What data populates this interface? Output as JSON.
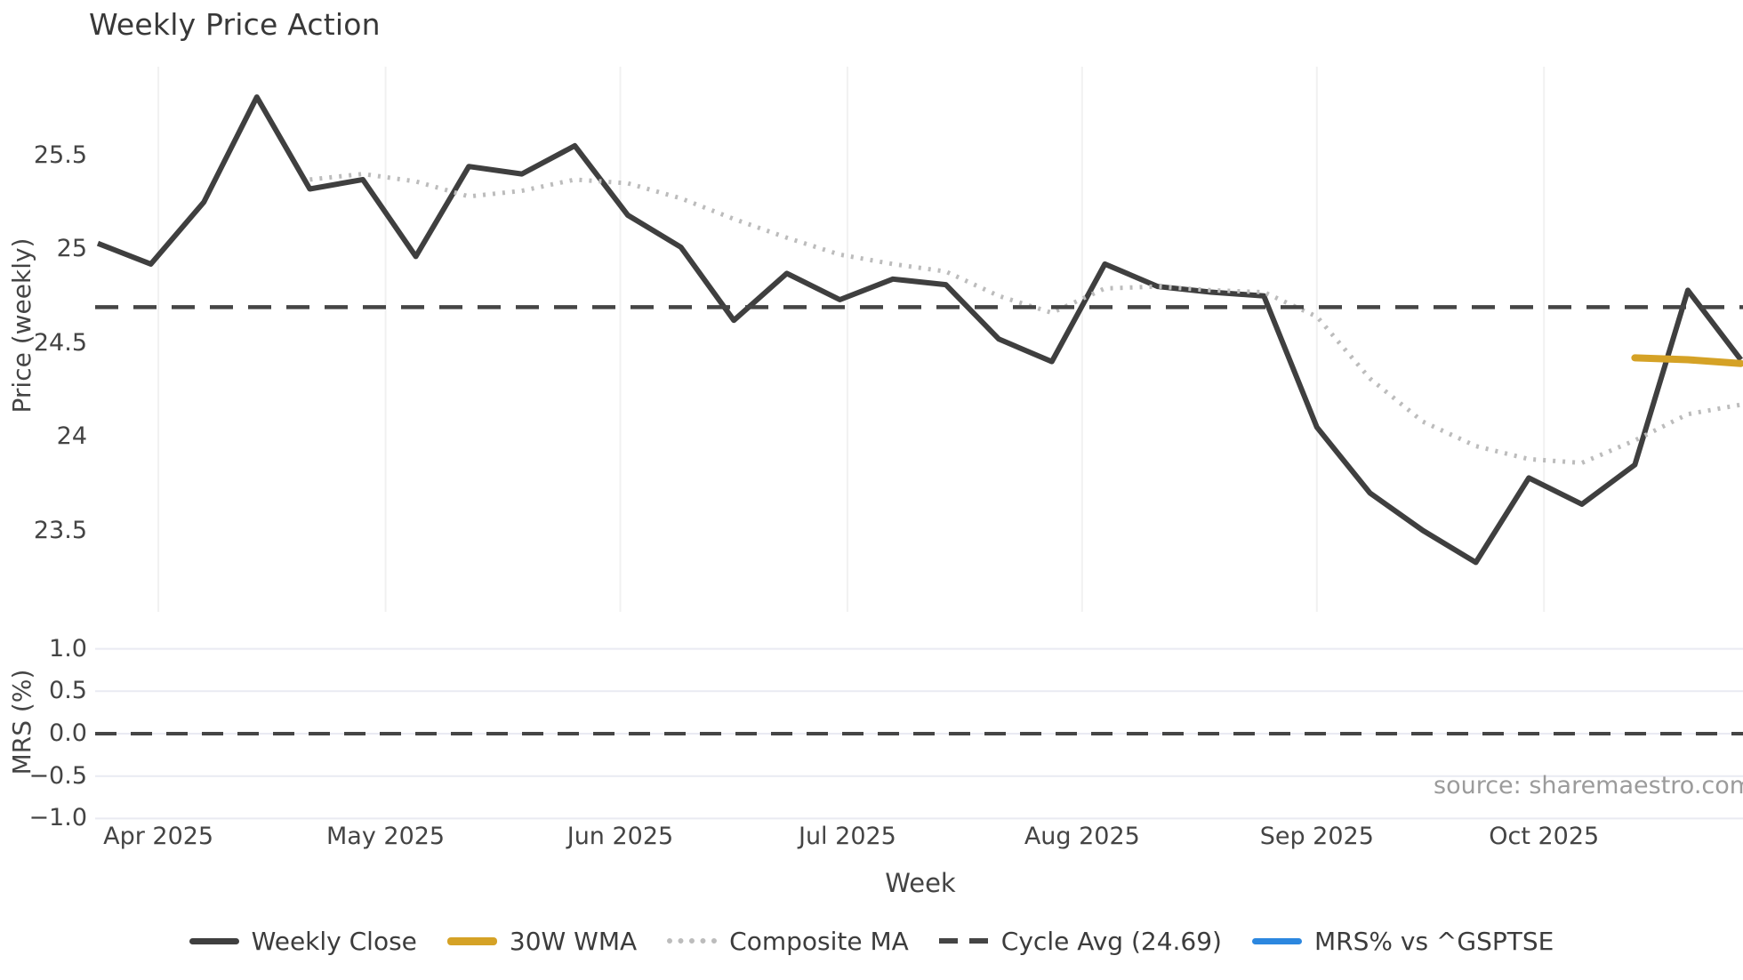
{
  "title": "Weekly Price Action",
  "price_panel": {
    "y_axis_title": "Price (weekly)",
    "ytick_labels": [
      "25.5",
      "25",
      "24.5",
      "24",
      "23.5"
    ],
    "ytick_values": [
      25.5,
      25.0,
      24.5,
      24.0,
      23.5
    ]
  },
  "mrs_panel": {
    "y_axis_title": "MRS (%)",
    "ytick_labels": [
      "1.0",
      "0.5",
      "0.0",
      "−0.5",
      "−1.0"
    ],
    "ytick_values": [
      1.0,
      0.5,
      0.0,
      -0.5,
      -1.0
    ]
  },
  "x_axis": {
    "title": "Week",
    "ticks": [
      {
        "label": "Apr 2025",
        "week_pos": 1.143
      },
      {
        "label": "May 2025",
        "week_pos": 5.429
      },
      {
        "label": "Jun 2025",
        "week_pos": 9.857
      },
      {
        "label": "Jul 2025",
        "week_pos": 14.143
      },
      {
        "label": "Aug 2025",
        "week_pos": 18.571
      },
      {
        "label": "Sep 2025",
        "week_pos": 23.0
      },
      {
        "label": "Oct 2025",
        "week_pos": 27.286
      }
    ]
  },
  "legend": [
    {
      "label": "Weekly Close",
      "color": "#3f3f3f",
      "style": "solid"
    },
    {
      "label": "30W WMA",
      "color": "#d5a226",
      "style": "thick"
    },
    {
      "label": "Composite MA",
      "color": "#bcbcbc",
      "style": "dotted"
    },
    {
      "label": "Cycle Avg (24.69)",
      "color": "#454545",
      "style": "dashed"
    },
    {
      "label": "MRS% vs ^GSPTSE",
      "color": "#2c87df",
      "style": "solid"
    }
  ],
  "source": "source: sharemaestro.com",
  "colors": {
    "weekly_close": "#3f3f3f",
    "wma_30w": "#d5a226",
    "composite_ma": "#bcbcbc",
    "cycle_avg": "#454545",
    "mrs": "#2c87df",
    "grid_vertical": "#f1f1f1",
    "grid_horizontal": "#e9eaf2"
  },
  "chart_data": [
    {
      "type": "line",
      "panel": "price",
      "title": "Weekly Price Action",
      "ylabel": "Price (weekly)",
      "ylim": [
        23.07,
        25.97
      ],
      "cycle_avg": 24.69,
      "x_unit": "week_index_1_based",
      "series": [
        {
          "name": "Weekly Close",
          "start_week": 1,
          "values": [
            25.03,
            24.92,
            25.25,
            25.81,
            25.32,
            25.37,
            24.96,
            25.44,
            25.4,
            25.55,
            25.18,
            25.01,
            24.62,
            24.87,
            24.73,
            24.84,
            24.81,
            24.52,
            24.4,
            24.92,
            24.8,
            24.77,
            24.75,
            24.05,
            23.7,
            23.5,
            23.33,
            23.78,
            23.64,
            23.85,
            24.78,
            24.41
          ]
        },
        {
          "name": "Composite MA",
          "start_week": 5,
          "values": [
            25.37,
            25.4,
            25.36,
            25.28,
            25.31,
            25.37,
            25.35,
            25.27,
            25.16,
            25.06,
            24.97,
            24.92,
            24.88,
            24.75,
            24.66,
            24.79,
            24.8,
            24.78,
            24.77,
            24.64,
            24.31,
            24.08,
            23.95,
            23.88,
            23.86,
            23.98,
            24.12,
            24.17
          ]
        },
        {
          "name": "30W WMA",
          "start_week": 30,
          "values": [
            24.42,
            24.41,
            24.39
          ]
        }
      ]
    },
    {
      "type": "line",
      "panel": "mrs",
      "ylabel": "MRS (%)",
      "ylim": [
        -1.12,
        1.12
      ],
      "zero_line": 0.0,
      "series": [
        {
          "name": "MRS% vs ^GSPTSE",
          "start_week": 1,
          "values": [],
          "note": "no visible trace in panel; legend entry only"
        }
      ]
    }
  ]
}
